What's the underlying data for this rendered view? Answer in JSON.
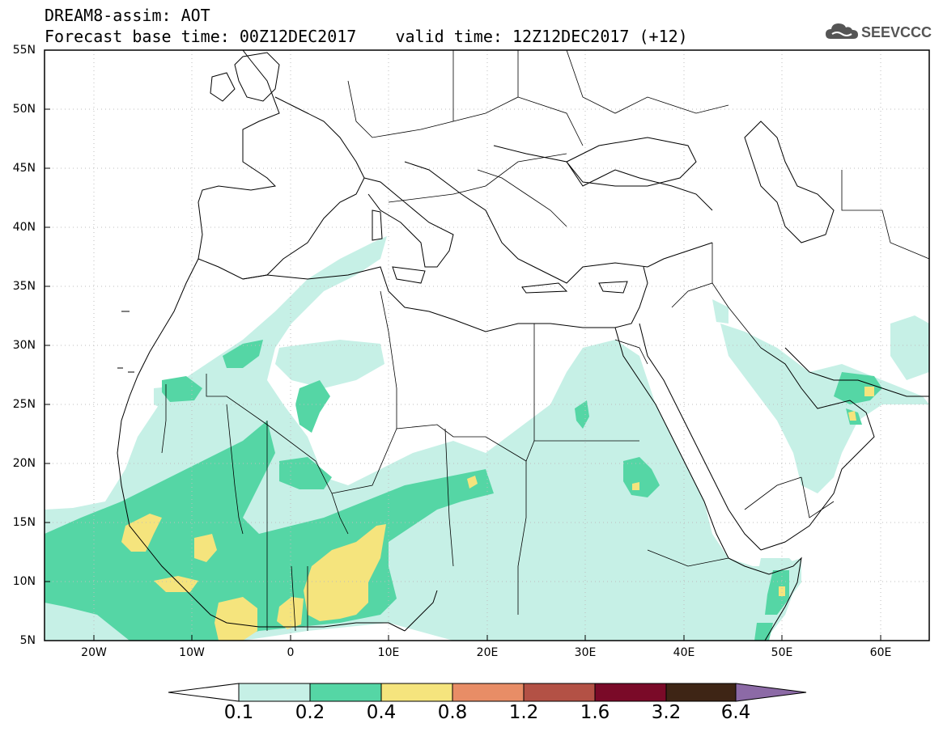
{
  "header": {
    "line1": "DREAM8-assim: AOT",
    "line2": "Forecast base time: 00Z12DEC2017    valid time: 12Z12DEC2017 (+12)",
    "logo_text": "SEEVCCC"
  },
  "map": {
    "lat_ticks": [
      "55N",
      "50N",
      "45N",
      "40N",
      "35N",
      "30N",
      "25N",
      "20N",
      "15N",
      "10N",
      "5N"
    ],
    "lon_ticks": [
      "20W",
      "10W",
      "0",
      "10E",
      "20E",
      "30E",
      "40E",
      "50E",
      "60E"
    ]
  },
  "legend": {
    "labels": [
      "0.1",
      "0.2",
      "0.4",
      "0.8",
      "1.2",
      "1.6",
      "3.2",
      "6.4"
    ],
    "colors": [
      "#ffffff",
      "#c6f0e6",
      "#55d6a5",
      "#f5e47d",
      "#e88d66",
      "#b35145",
      "#7a0a28",
      "#3e2515",
      "#8c6aa6"
    ]
  },
  "colors": {
    "level_0_1": "#c6f0e6",
    "level_0_2": "#55d6a5",
    "level_0_4": "#f5e47d",
    "coastline": "#000000",
    "border": "#000000",
    "gridline": "#bdbdbd"
  }
}
